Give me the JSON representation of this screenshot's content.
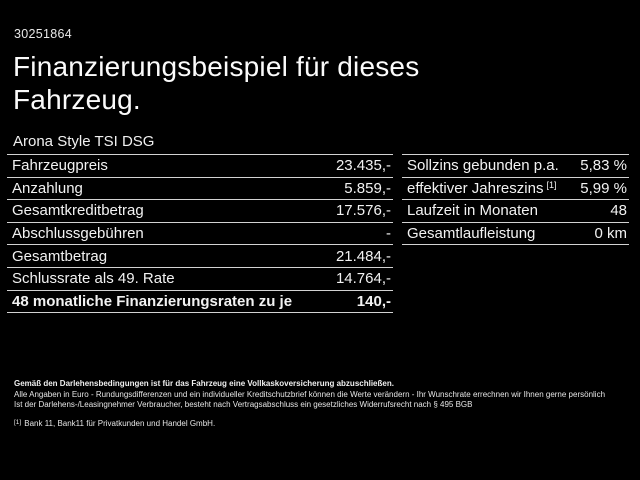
{
  "header": {
    "vehicle_id": "30251864",
    "title": "Finanzierungsbeispiel für dieses Fahrzeug.",
    "model": "Arona Style TSI DSG"
  },
  "finance_table": {
    "rows": [
      {
        "label": "Fahrzeugpreis",
        "value": "23.435,-"
      },
      {
        "label": "Anzahlung",
        "value": "5.859,-"
      },
      {
        "label": "Gesamtkreditbetrag",
        "value": "17.576,-"
      },
      {
        "label": "Abschlussgebühren",
        "value": "-"
      },
      {
        "label": "Gesamtbetrag",
        "value": "21.484,-"
      },
      {
        "label": "Schlussrate als 49. Rate",
        "value": "14.764,-"
      },
      {
        "label": "48 monatliche Finanzierungsraten zu je",
        "value": "140,-"
      }
    ]
  },
  "conditions_table": {
    "rows": [
      {
        "label": "Sollzins gebunden p.a.",
        "value": "5,83 %"
      },
      {
        "label": "effektiver Jahreszins",
        "sup": "[1]",
        "value": "5,99 %"
      },
      {
        "label": "Laufzeit in Monaten",
        "value": "48"
      },
      {
        "label": "Gesamtlaufleistung",
        "value": "0 km"
      }
    ]
  },
  "footnotes": {
    "insurance_note": "Gemäß den Darlehensbedingungen ist für das Fahrzeug eine Vollkaskoversicherung abzuschließen.",
    "euro_note": "Alle Angaben in Euro - Rundungsdifferenzen und ein individueller Kreditschutzbrief können die Werte verändern - Ihr Wunschrate errechnen wir Ihnen gerne persönlich",
    "withdrawal_note": "Ist der Darlehens-/Leasingnehmer Verbraucher, besteht nach Vertragsabschluss ein gesetzliches Widerrufsrecht nach § 495 BGB",
    "bank_ref_marker": "[1]",
    "bank_note": "Bank 11, Bank11 für Privatkunden und Handel GmbH."
  },
  "colors": {
    "background": "#000000",
    "text": "#f2f2f2",
    "divider": "#d2d2d2"
  }
}
